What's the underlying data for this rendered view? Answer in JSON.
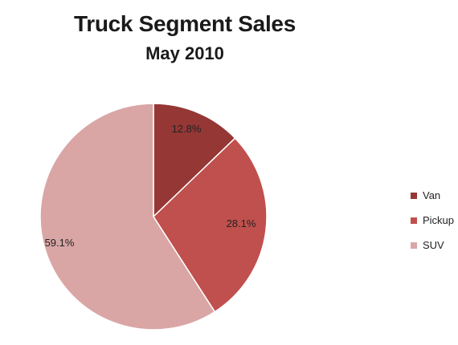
{
  "chart_data": {
    "type": "pie",
    "title": "Truck Segment Sales",
    "subtitle": "May 2010",
    "categories": [
      "Van",
      "Pickup",
      "SUV"
    ],
    "values": [
      12.8,
      28.1,
      59.1
    ],
    "labels": [
      "12.8%",
      "28.1%",
      "59.1%"
    ],
    "colors": [
      "#953735",
      "#c0504d",
      "#d9a6a5"
    ],
    "legend_position": "right"
  }
}
